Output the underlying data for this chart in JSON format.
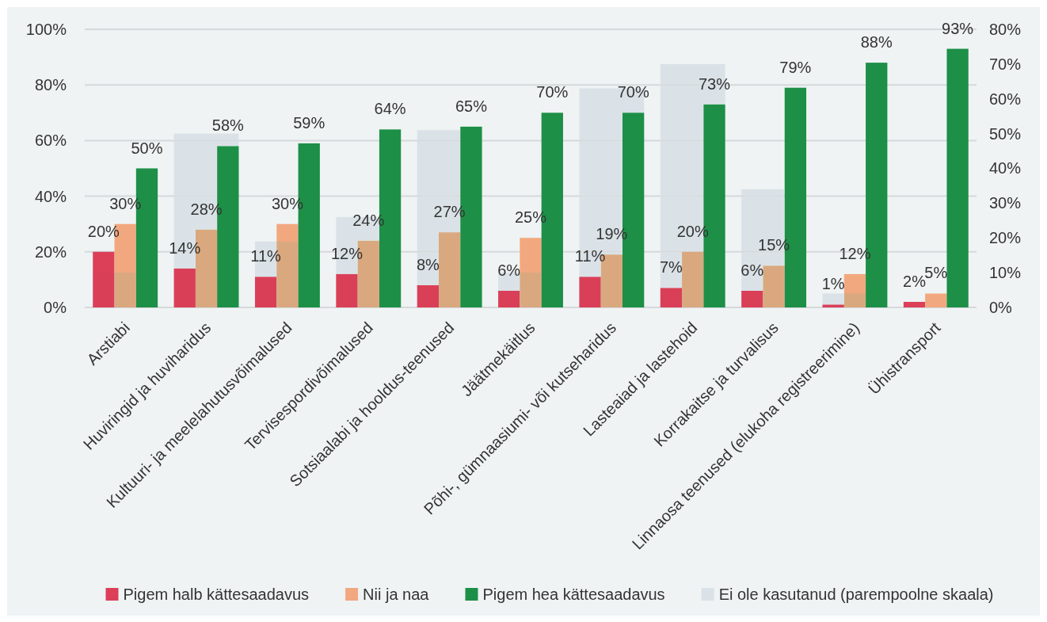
{
  "chart_data": {
    "type": "bar",
    "categories": [
      "Arstiabi",
      "Huviringid ja huviharidus",
      "Kultuuri- ja meelelahutusvõimalused",
      "Tervisespordivõimalused",
      "Sotsiaalabi ja hooldus-teenused",
      "Jäätmekäitlus",
      "Põhi-, gümnaasiumi- või kutseharidus",
      "Lasteaiad ja lastehoid",
      "Korrakaitse ja turvalisus",
      "Linnaosa teenused (elukoha registreerimine)",
      "Ühistransport"
    ],
    "series": [
      {
        "name": "Pigem halb kättesaadavus",
        "color": "#dc3f58",
        "values": [
          20,
          14,
          11,
          12,
          8,
          6,
          11,
          7,
          6,
          1,
          2
        ],
        "value_labels": [
          "20%",
          "14%",
          "11%",
          "12%",
          "8%",
          "6%",
          "11%",
          "7%",
          "6%",
          "1%",
          "2%"
        ]
      },
      {
        "name": "Nii ja naa",
        "color": "#f2a87f",
        "values": [
          30,
          28,
          30,
          24,
          27,
          25,
          19,
          20,
          15,
          12,
          5
        ],
        "value_labels": [
          "30%",
          "28%",
          "30%",
          "24%",
          "27%",
          "25%",
          "19%",
          "20%",
          "15%",
          "12%",
          "5%"
        ]
      },
      {
        "name": "Pigem hea kättesaadavus",
        "color": "#1d8f47",
        "values": [
          50,
          58,
          59,
          64,
          65,
          70,
          70,
          73,
          79,
          88,
          93
        ],
        "value_labels": [
          "50%",
          "58%",
          "59%",
          "64%",
          "65%",
          "70%",
          "70%",
          "73%",
          "79%",
          "88%",
          "93%"
        ]
      },
      {
        "name": "Ei ole kasutanud (parempoolne skaala)",
        "color": "#dae2e7",
        "axis": "y2",
        "values": [
          10,
          50,
          19,
          26,
          51,
          10,
          63,
          70,
          34,
          4,
          0
        ]
      }
    ],
    "ylim": [
      0,
      100
    ],
    "yticks": [
      {
        "value": 0,
        "label": "0%"
      },
      {
        "value": 20,
        "label": "20%"
      },
      {
        "value": 40,
        "label": "40%"
      },
      {
        "value": 60,
        "label": "60%"
      },
      {
        "value": 80,
        "label": "80%"
      },
      {
        "value": 100,
        "label": "100%"
      }
    ],
    "y2lim": [
      0,
      80
    ],
    "y2ticks": [
      {
        "value": 0,
        "label": "0%"
      },
      {
        "value": 10,
        "label": "10%"
      },
      {
        "value": 20,
        "label": "20%"
      },
      {
        "value": 30,
        "label": "30%"
      },
      {
        "value": 40,
        "label": "40%"
      },
      {
        "value": 50,
        "label": "50%"
      },
      {
        "value": 60,
        "label": "60%"
      },
      {
        "value": 70,
        "label": "70%"
      },
      {
        "value": 80,
        "label": "80%"
      }
    ],
    "grid": "y",
    "legend": "bottom"
  }
}
